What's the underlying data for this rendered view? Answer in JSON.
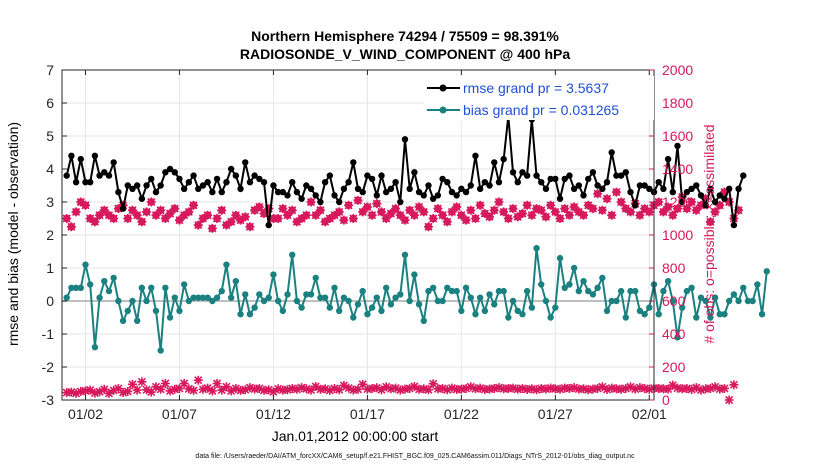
{
  "chart_data": {
    "type": "line",
    "title": "Northern Hemisphere 74294 / 75509 = 98.391%",
    "subtitle": "RADIOSONDE_V_WIND_COMPONENT @ 400 hPa",
    "xlabel": "Jan.01,2012 00:00:00 start",
    "ylabel_left": "rmse and bias (model - observation)",
    "ylabel_right": "# of obs: o=possible; ×=assimilated",
    "footnote": "data file: /Users/raeder/DAI/ATM_forcXX/CAM6_setup/f.e21.FHIST_BGC.f09_025.CAM6assim.011/Diags_NTrS_2012-01/obs_diag_output.nc",
    "x_ticks": [
      "01/02",
      "01/07",
      "01/12",
      "01/17",
      "01/22",
      "01/27",
      "02/01"
    ],
    "x_tick_days": [
      1,
      6,
      11,
      16,
      21,
      26,
      31
    ],
    "xlim": [
      -0.25,
      31.25
    ],
    "ylim_left": [
      -3,
      7
    ],
    "y_ticks_left": [
      "-3",
      "-2",
      "-1",
      "0",
      "1",
      "2",
      "3",
      "4",
      "5",
      "6",
      "7"
    ],
    "ylim_right": [
      0,
      2000
    ],
    "y_ticks_right": [
      "0",
      "200",
      "400",
      "600",
      "800",
      "1000",
      "1200",
      "1400",
      "1600",
      "1800",
      "2000"
    ],
    "grid": true,
    "legend_position": "top-right",
    "legend": [
      "rmse grand pr = 3.5637",
      "bias grand pr = 0.031265"
    ],
    "colors": {
      "rmse": "#000000",
      "bias": "#1a8080",
      "obs": "#d6195a",
      "zero_line": "#aaaaaa",
      "legend_text": "#1f4fd6",
      "grid": "#e6e6e6"
    },
    "series": [
      {
        "name": "rmse grand pr",
        "x_start_day": 0,
        "x_step_days": 0.25,
        "values": [
          3.8,
          4.4,
          3.6,
          4.3,
          3.6,
          3.6,
          4.4,
          3.8,
          3.9,
          3.8,
          4.2,
          3.3,
          2.8,
          3.5,
          3.4,
          3.5,
          3.1,
          3.5,
          3.7,
          3.3,
          3.5,
          3.9,
          4.0,
          3.9,
          3.7,
          3.4,
          3.6,
          3.8,
          3.4,
          3.5,
          3.6,
          3.3,
          3.7,
          3.3,
          3.6,
          4.0,
          3.8,
          3.4,
          4.2,
          3.6,
          3.8,
          3.7,
          3.6,
          2.3,
          3.5,
          3.3,
          3.3,
          3.2,
          3.6,
          3.3,
          3.1,
          3.5,
          3.4,
          3.2,
          3.0,
          3.6,
          3.8,
          3.2,
          3.0,
          3.4,
          3.6,
          4.2,
          3.4,
          3.3,
          3.8,
          3.7,
          3.2,
          3.8,
          3.3,
          3.4,
          3.6,
          3.0,
          4.9,
          3.4,
          3.9,
          3.3,
          3.2,
          3.5,
          3.1,
          3.2,
          3.7,
          3.6,
          3.3,
          3.2,
          3.4,
          3.3,
          3.5,
          4.4,
          3.4,
          3.6,
          3.5,
          4.2,
          3.6,
          4.3,
          5.6,
          3.9,
          3.6,
          3.9,
          3.8,
          5.5,
          3.8,
          3.6,
          3.4,
          3.7,
          3.7,
          3.1,
          3.7,
          3.8,
          3.4,
          3.5,
          3.2,
          3.7,
          3.9,
          3.5,
          3.4,
          3.6,
          4.5,
          3.8,
          3.8,
          3.9,
          3.3,
          2.9,
          3.5,
          3.5,
          3.4,
          3.3,
          3.6,
          3.4,
          4.3,
          3.3,
          4.7,
          3.0,
          3.3,
          3.4,
          3.5,
          3.2,
          2.9,
          3.4,
          3.0,
          3.2,
          3.1,
          3.4,
          2.3,
          3.4,
          3.8
        ]
      },
      {
        "name": "bias grand pr",
        "x_start_day": 0,
        "x_step_days": 0.25,
        "values": [
          0.1,
          0.4,
          0.4,
          0.4,
          1.1,
          0.5,
          -1.4,
          0.1,
          0.6,
          0.3,
          0.7,
          0.0,
          -0.6,
          -0.3,
          0.0,
          -0.6,
          0.4,
          0.0,
          0.4,
          -0.3,
          -1.5,
          0.4,
          -0.5,
          0.1,
          -0.3,
          0.5,
          0.0,
          0.1,
          0.1,
          0.1,
          0.1,
          0.0,
          0.1,
          0.3,
          1.1,
          0.1,
          0.6,
          -0.4,
          0.2,
          -0.4,
          -0.2,
          0.2,
          0.0,
          0.1,
          0.8,
          0.0,
          -0.3,
          0.2,
          1.4,
          0.0,
          -0.2,
          0.2,
          0.2,
          0.7,
          0.1,
          0.1,
          -0.2,
          0.4,
          -0.3,
          0.1,
          0.0,
          -0.5,
          -0.1,
          0.3,
          -0.4,
          -0.2,
          0.1,
          -0.3,
          0.4,
          -0.1,
          0.1,
          0.2,
          1.4,
          0.0,
          0.8,
          -0.1,
          -0.6,
          0.3,
          0.4,
          0.0,
          0.0,
          0.4,
          0.3,
          0.3,
          -0.3,
          0.4,
          0.1,
          -0.4,
          0.1,
          -0.3,
          0.2,
          -0.1,
          0.3,
          0.3,
          -0.5,
          0.0,
          -0.3,
          -0.4,
          0.3,
          -0.2,
          1.6,
          0.5,
          0.0,
          -0.5,
          -0.2,
          1.3,
          0.4,
          0.5,
          1.0,
          0.3,
          0.6,
          0.3,
          0.2,
          0.4,
          0.7,
          -0.3,
          0.0,
          0.0,
          0.3,
          -0.5,
          0.3,
          0.3,
          -0.3,
          -0.4,
          -0.2,
          0.5,
          -0.4,
          0.3,
          0.6,
          0.0,
          -1.1,
          -0.2,
          0.3,
          0.4,
          -0.5,
          0.1,
          0.0,
          -0.5,
          0.1,
          -0.4,
          -0.4,
          0.0,
          0.2,
          0.0,
          0.4,
          0.0,
          0.0,
          0.5,
          -0.4,
          0.9
        ]
      },
      {
        "name": "# of obs possible",
        "marker": "o",
        "x_start_day": 0,
        "x_step_days": 0.25,
        "values": [
          1100,
          1050,
          1140,
          1200,
          1180,
          1100,
          1080,
          1120,
          1150,
          1120,
          1100,
          1160,
          1180,
          1100,
          1150,
          1120,
          1080,
          1140,
          1200,
          1120,
          1150,
          1100,
          1130,
          1160,
          1090,
          1120,
          1140,
          1180,
          1060,
          1100,
          1120,
          1040,
          1100,
          1150,
          1060,
          1080,
          1120,
          1090,
          1110,
          1050,
          1150,
          1170,
          1130,
          1160,
          1100,
          1100,
          1160,
          1120,
          1150,
          1080,
          1100,
          1120,
          1200,
          1120,
          1150,
          1080,
          1100,
          1120,
          1140,
          1090,
          1180,
          1100,
          1210,
          1140,
          1170,
          1120,
          1190,
          1140,
          1100,
          1130,
          1160,
          1120,
          1090,
          1150,
          1120,
          1170,
          1140,
          1050,
          1100,
          1160,
          1120,
          1080,
          1140,
          1170,
          1120,
          1090,
          1150,
          1100,
          1180,
          1130,
          1110,
          1150,
          1200,
          1140,
          1100,
          1160,
          1110,
          1130,
          1180,
          1120,
          1160,
          1150,
          1110,
          1180,
          1140,
          1100,
          1160,
          1120,
          1170,
          1140,
          1120,
          1180,
          1160,
          1250,
          1150,
          1220,
          1120,
          1260,
          1200,
          1160,
          1140,
          1190,
          1120,
          1160,
          1140,
          1180,
          1200,
          1140,
          1170,
          1120,
          1160,
          1230,
          1160,
          1200,
          1150,
          1180,
          1220,
          1080,
          1140,
          1180,
          1260,
          1200,
          1100,
          1150
        ]
      },
      {
        "name": "# of obs assimilated",
        "marker": "x",
        "x_start_day": 0,
        "x_step_days": 0.25,
        "values": [
          45,
          48,
          40,
          52,
          55,
          60,
          42,
          50,
          65,
          40,
          58,
          70,
          45,
          52,
          95,
          60,
          110,
          62,
          48,
          80,
          65,
          100,
          55,
          65,
          70,
          100,
          68,
          58,
          120,
          65,
          72,
          55,
          100,
          60,
          80,
          55,
          70,
          58,
          62,
          75,
          66,
          70,
          58,
          62,
          50,
          68,
          60,
          62,
          70,
          65,
          75,
          68,
          60,
          82,
          65,
          68,
          58,
          70,
          62,
          88,
          72,
          60,
          65,
          95,
          66,
          70,
          74,
          62,
          80,
          68,
          72,
          60,
          66,
          70,
          82,
          65,
          68,
          62,
          98,
          68,
          70,
          62,
          72,
          64,
          66,
          70,
          80,
          68,
          72,
          64,
          66,
          70,
          75,
          68,
          70,
          72,
          65,
          70,
          64,
          68,
          62,
          70,
          66,
          72,
          68,
          65,
          72,
          70,
          75,
          66,
          68,
          62,
          66,
          70,
          80,
          64,
          72,
          68,
          65,
          70,
          80,
          66,
          75,
          70,
          65,
          72,
          70,
          68,
          66,
          90,
          72,
          68,
          70,
          64,
          75,
          60,
          68,
          70,
          80,
          66,
          70,
          0,
          92
        ]
      }
    ]
  }
}
